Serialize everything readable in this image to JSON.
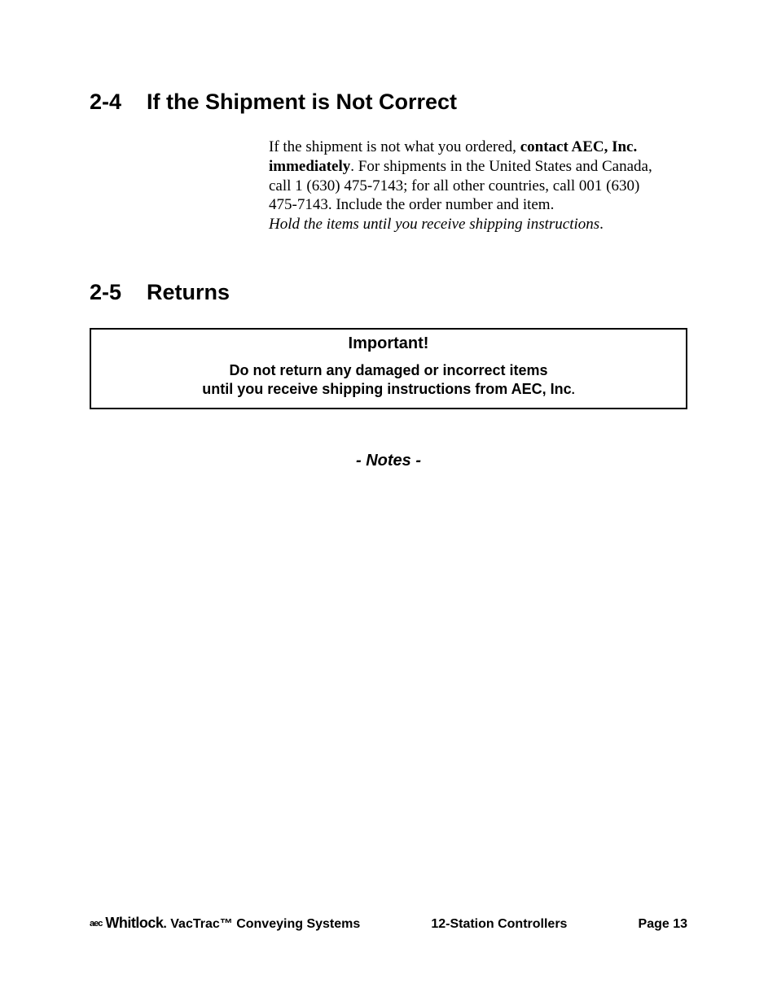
{
  "section1": {
    "number": "2-4",
    "title": "If the Shipment is Not Correct",
    "body_pre": "If the shipment is not what you ordered, ",
    "body_bold": "contact AEC, Inc. immediately",
    "body_post": ". For shipments in the United States and Canada, call 1 (630) 475-7143; for all other countries, call 001 (630) 475-7143. Include the order number and item.",
    "body_italic": "Hold the items until you receive shipping instructions",
    "body_italic_post": "."
  },
  "section2": {
    "number": "2-5",
    "title": "Returns",
    "important_label": "Important!",
    "important_line1": "Do not return any damaged or incorrect items",
    "important_line2": "until you receive shipping instructions from AEC, Inc",
    "important_period": "."
  },
  "notes_label": "- Notes -",
  "footer": {
    "aec_mark": "aec",
    "brand": "Whitlock",
    "brand_suffix": ".",
    "left_text": " VacTrac™ Conveying Systems",
    "center_text": "12-Station Controllers",
    "right_text": "Page 13"
  }
}
